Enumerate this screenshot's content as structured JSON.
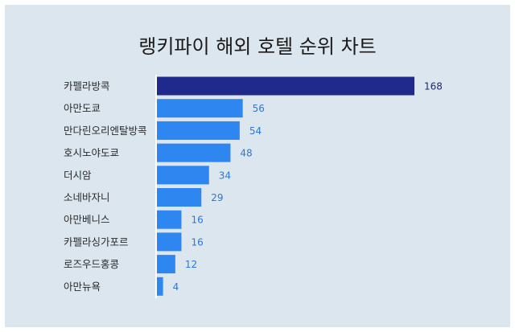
{
  "chart_data": {
    "type": "bar",
    "orientation": "horizontal",
    "title": "랭키파이 해외 호텔 순위 차트",
    "categories": [
      "카펠라방콕",
      "아만도쿄",
      "만다린오리엔탈방콕",
      "호시노야도쿄",
      "더시암",
      "소네바자니",
      "아만베니스",
      "카펠라싱가포르",
      "로즈우드홍콩",
      "아만뉴욕"
    ],
    "values": [
      168,
      56,
      54,
      48,
      34,
      29,
      16,
      16,
      12,
      4
    ],
    "xlim": [
      0,
      168
    ],
    "grid": false,
    "legend": "none",
    "colors": {
      "highlight_bar": "#1f2a8c",
      "bar": "#2e86f0",
      "highlight_label": "#1f2a6c",
      "label": "#2b78d8",
      "background": "#dce6ee"
    }
  }
}
